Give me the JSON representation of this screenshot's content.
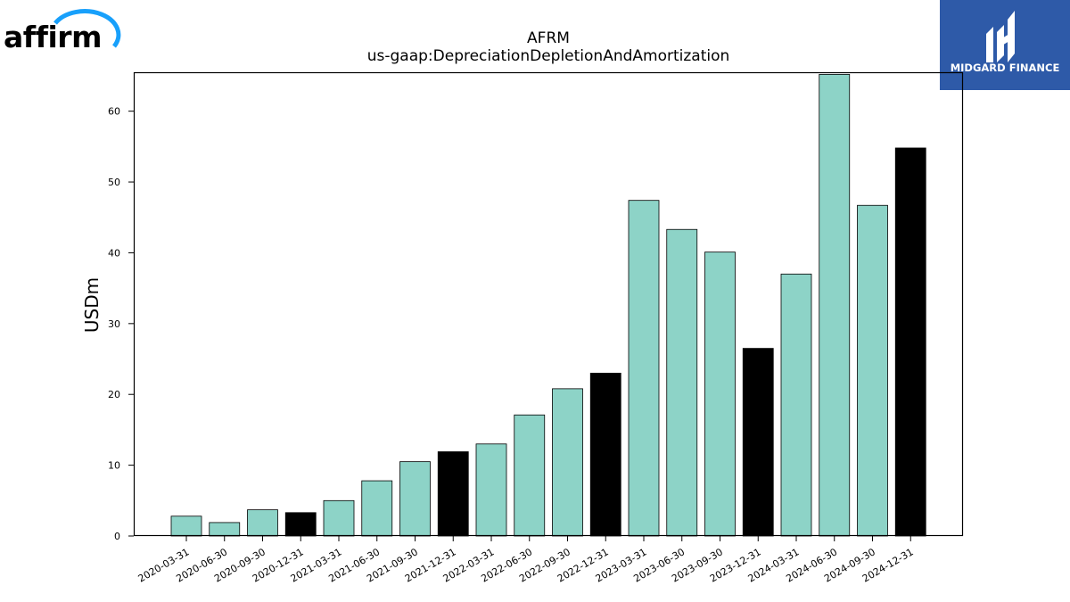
{
  "branding": {
    "left_logo_text": "affirm",
    "right_logo_text": "MIDGARD FINANCE",
    "right_logo_bg": "#2e5aa8",
    "affirm_arc_color": "#18a0fb"
  },
  "chart_data": {
    "type": "bar",
    "title": "AFRM",
    "subtitle": "us-gaap:DepreciationDepletionAndAmortization",
    "xlabel": "",
    "ylabel": "USDm",
    "ylim": [
      0,
      65.5
    ],
    "yticks": [
      0,
      10,
      20,
      30,
      40,
      50,
      60
    ],
    "grid": false,
    "legend": "none",
    "colors": {
      "quarter": "#8dd3c7",
      "year_end": "#000000",
      "edge": "#000000"
    },
    "categories": [
      "2020-03-31",
      "2020-06-30",
      "2020-09-30",
      "2020-12-31",
      "2021-03-31",
      "2021-06-30",
      "2021-09-30",
      "2021-12-31",
      "2022-03-31",
      "2022-06-30",
      "2022-09-30",
      "2022-12-31",
      "2023-03-31",
      "2023-06-30",
      "2023-09-30",
      "2023-12-31",
      "2024-03-31",
      "2024-06-30",
      "2024-09-30",
      "2024-12-31"
    ],
    "values": [
      2.8,
      1.9,
      3.7,
      3.3,
      5.0,
      7.8,
      10.5,
      11.9,
      13.0,
      17.1,
      20.8,
      23.0,
      47.4,
      43.3,
      40.1,
      26.5,
      37.0,
      65.2,
      46.7,
      54.8
    ],
    "highlight": [
      false,
      false,
      false,
      true,
      false,
      false,
      false,
      true,
      false,
      false,
      false,
      true,
      false,
      false,
      false,
      true,
      false,
      false,
      false,
      true
    ]
  }
}
